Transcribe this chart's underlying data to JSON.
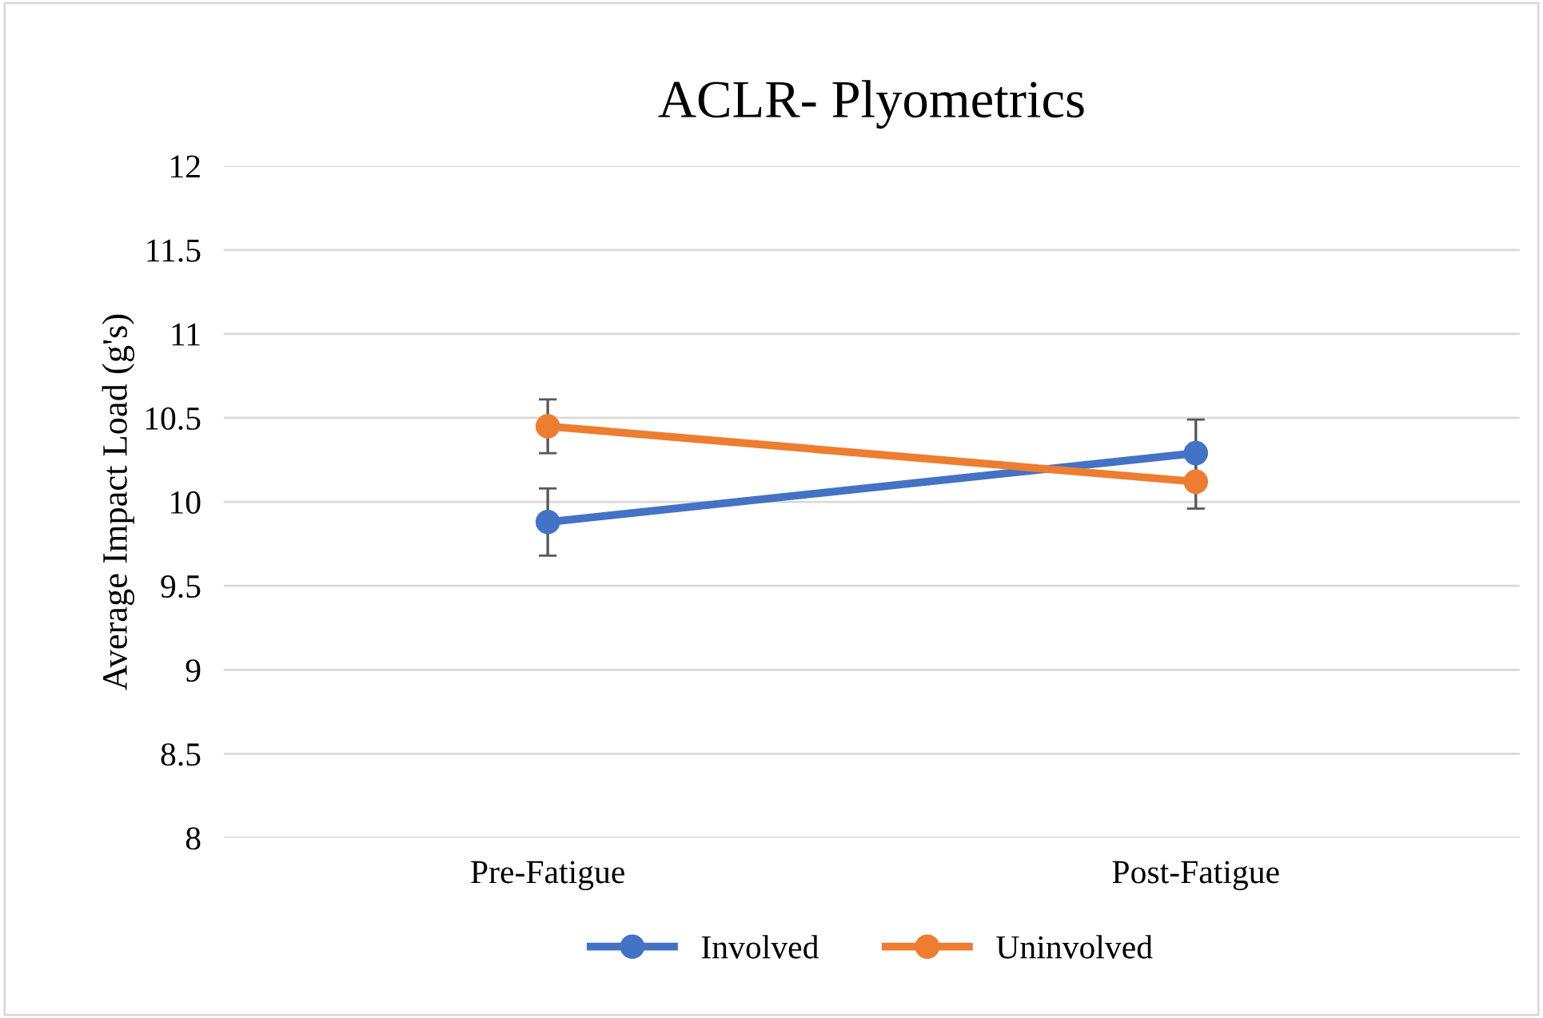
{
  "chart_data": {
    "type": "line",
    "title": "ACLR- Plyometrics",
    "ylabel": "Average Impact Load (g's)",
    "categories": [
      "Pre-Fatigue",
      "Post-Fatigue"
    ],
    "series": [
      {
        "name": "Involved",
        "color": "#4472c4",
        "values": [
          9.88,
          10.29
        ],
        "errors": [
          0.2,
          0.2
        ]
      },
      {
        "name": "Uninvolved",
        "color": "#ed7d31",
        "values": [
          10.45,
          10.12
        ],
        "errors": [
          0.16,
          0.16
        ]
      }
    ],
    "ylim": [
      8,
      12
    ],
    "yticks": [
      8,
      8.5,
      9,
      9.5,
      10,
      10.5,
      11,
      11.5,
      12
    ],
    "grid": "y",
    "legend": "bottom",
    "marker": "circle",
    "line_style": "solid"
  }
}
